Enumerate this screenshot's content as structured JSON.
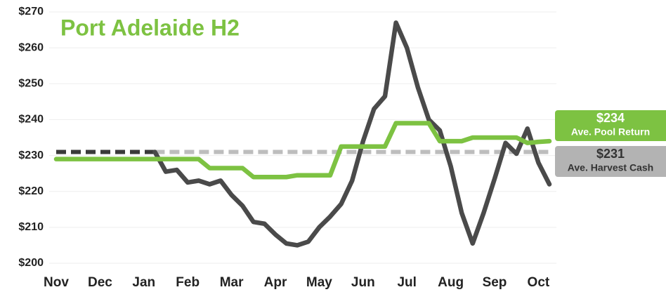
{
  "chart_data": {
    "type": "line",
    "title": "Port Adelaide H2",
    "categories": [
      "Nov",
      null,
      null,
      null,
      "Dec",
      null,
      null,
      null,
      "Jan",
      null,
      null,
      null,
      "Feb",
      null,
      null,
      null,
      "Mar",
      null,
      null,
      null,
      "Apr",
      null,
      null,
      null,
      "May",
      null,
      null,
      null,
      "Jun",
      null,
      null,
      null,
      "Jul",
      null,
      null,
      null,
      "Aug",
      null,
      null,
      null,
      "Sep",
      null,
      null,
      null,
      "Oct",
      null
    ],
    "series": [
      {
        "color": "#3a3a3a",
        "dashed": true,
        "values": [
          231,
          231,
          231,
          231,
          231,
          231,
          231,
          231,
          231,
          231,
          null,
          null,
          null,
          null,
          null,
          null,
          null,
          null,
          null,
          null,
          null,
          null,
          null,
          null,
          null,
          null,
          null,
          null,
          null,
          null,
          null,
          null,
          null,
          null,
          null,
          null,
          null,
          null,
          null,
          null,
          null,
          null,
          null,
          null,
          null,
          null
        ]
      },
      {
        "name": "Ave. Harvest Cash",
        "color": "#bdbdbd",
        "dashed": true,
        "label_color": "#b3b3b3",
        "values": [
          null,
          null,
          null,
          null,
          null,
          null,
          null,
          null,
          null,
          231,
          231,
          231,
          231,
          231,
          231,
          231,
          231,
          231,
          231,
          231,
          231,
          231,
          231,
          231,
          231,
          231,
          231,
          231,
          231,
          231,
          231,
          231,
          231,
          231,
          231,
          231,
          231,
          231,
          231,
          231,
          231,
          231,
          231,
          231,
          231,
          231
        ],
        "value_labels": [
          null,
          null,
          null,
          null,
          null,
          null,
          null,
          null,
          null,
          null,
          null,
          null,
          null,
          null,
          null,
          null,
          null,
          null,
          null,
          null,
          null,
          null,
          null,
          null,
          null,
          null,
          null,
          null,
          null,
          null,
          null,
          null,
          null,
          null,
          null,
          null,
          null,
          null,
          null,
          null,
          null,
          null,
          null,
          null,
          null,
          "$231"
        ]
      },
      {
        "color": "#4a4a4a",
        "dashed": false,
        "values": [
          null,
          null,
          null,
          null,
          null,
          null,
          null,
          null,
          null,
          231,
          225.5,
          226,
          222.5,
          223,
          222,
          223,
          219,
          216,
          211.5,
          211,
          208,
          205.5,
          205,
          206,
          210,
          213,
          216.5,
          223,
          234,
          243,
          246.5,
          267,
          260,
          249,
          240,
          237,
          227,
          214,
          205.5,
          214,
          223.5,
          233.5,
          230.5,
          237.5,
          228,
          222
        ]
      },
      {
        "name": "Ave. Pool Return",
        "color": "#7dc242",
        "dashed": false,
        "label_color": "#7dc242",
        "values": [
          229,
          229,
          229,
          229,
          229,
          229,
          229,
          229,
          229,
          229,
          229,
          229,
          229,
          229,
          226.5,
          226.5,
          226.5,
          226.5,
          224,
          224,
          224,
          224,
          224.5,
          224.5,
          224.5,
          224.5,
          232.5,
          232.5,
          232.5,
          232.5,
          232.5,
          239,
          239,
          239,
          239,
          234,
          234,
          234,
          235,
          235,
          235,
          235,
          235,
          233.5,
          233.8,
          234
        ],
        "value_labels": [
          null,
          null,
          null,
          null,
          null,
          null,
          null,
          null,
          null,
          null,
          null,
          null,
          null,
          null,
          null,
          null,
          null,
          null,
          null,
          null,
          null,
          null,
          null,
          null,
          null,
          null,
          null,
          null,
          null,
          null,
          null,
          null,
          null,
          null,
          null,
          null,
          null,
          null,
          null,
          null,
          null,
          null,
          null,
          null,
          null,
          "$234"
        ]
      }
    ],
    "ylim": [
      200,
      270
    ],
    "yticks": [
      {
        "value": 200,
        "label": "$200"
      },
      {
        "value": 210,
        "label": "$210"
      },
      {
        "value": 220,
        "label": "$220"
      },
      {
        "value": 230,
        "label": "$230"
      },
      {
        "value": 240,
        "label": "$240"
      },
      {
        "value": 250,
        "label": "$250"
      },
      {
        "value": 260,
        "label": "$260"
      },
      {
        "value": 270,
        "label": "$270"
      }
    ],
    "grid": true
  }
}
